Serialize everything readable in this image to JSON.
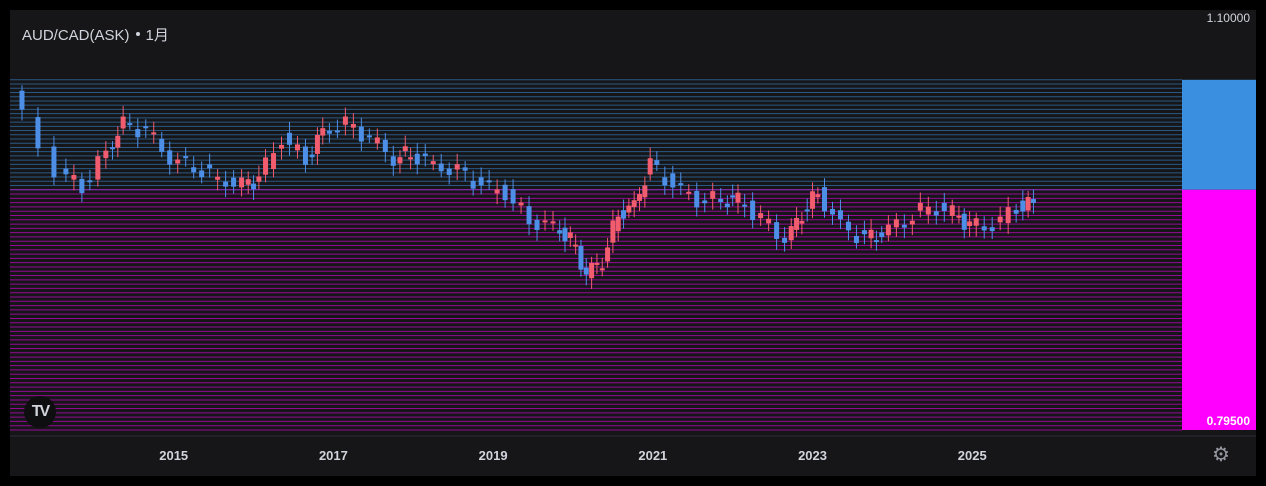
{
  "header": {
    "symbol": "AUD/CAD(ASK)",
    "interval": "1月"
  },
  "logo": {
    "label": "TV"
  },
  "settings_icon": "gear-icon",
  "colors": {
    "background": "#161618",
    "up": "#f15c6e",
    "down": "#4d8fe6",
    "zone_upper": "#3b8fe0",
    "zone_lower": "#ff00ff",
    "axis_text": "#d1d4dc"
  },
  "chart_data": {
    "type": "candlestick",
    "title": "AUD/CAD(ASK) · 1月",
    "x_ticks": [
      "2015",
      "2017",
      "2019",
      "2021",
      "2023",
      "2025"
    ],
    "y_axis": {
      "top_label": "1.10000",
      "bottom_label": "0.79500",
      "range": [
        0.795,
        1.1
      ]
    },
    "zones": [
      {
        "name": "upper",
        "color": "#3b8fe0",
        "from": 0.972,
        "to": 1.053
      },
      {
        "name": "lower",
        "color": "#ff00ff",
        "from": 0.795,
        "to": 0.972
      }
    ],
    "grid": false,
    "candles": [
      {
        "t": 2013.0,
        "c": 1.045
      },
      {
        "t": 2013.6,
        "c": 0.985
      },
      {
        "t": 2013.9,
        "c": 0.975
      },
      {
        "t": 2014.2,
        "c": 1.0
      },
      {
        "t": 2014.4,
        "c": 1.02
      },
      {
        "t": 2014.7,
        "c": 1.015
      },
      {
        "t": 2015.0,
        "c": 0.995
      },
      {
        "t": 2015.3,
        "c": 0.99
      },
      {
        "t": 2015.6,
        "c": 0.98
      },
      {
        "t": 2015.9,
        "c": 0.975
      },
      {
        "t": 2016.1,
        "c": 0.98
      },
      {
        "t": 2016.4,
        "c": 1.01
      },
      {
        "t": 2016.7,
        "c": 0.995
      },
      {
        "t": 2016.9,
        "c": 1.015
      },
      {
        "t": 2017.2,
        "c": 1.02
      },
      {
        "t": 2017.5,
        "c": 1.01
      },
      {
        "t": 2017.8,
        "c": 0.995
      },
      {
        "t": 2018.0,
        "c": 1.0
      },
      {
        "t": 2018.3,
        "c": 0.99
      },
      {
        "t": 2018.6,
        "c": 0.985
      },
      {
        "t": 2018.9,
        "c": 0.975
      },
      {
        "t": 2019.2,
        "c": 0.97
      },
      {
        "t": 2019.5,
        "c": 0.95
      },
      {
        "t": 2019.8,
        "c": 0.945
      },
      {
        "t": 2020.0,
        "c": 0.935
      },
      {
        "t": 2020.2,
        "c": 0.91
      },
      {
        "t": 2020.4,
        "c": 0.92
      },
      {
        "t": 2020.6,
        "c": 0.955
      },
      {
        "t": 2020.8,
        "c": 0.96
      },
      {
        "t": 2021.0,
        "c": 0.99
      },
      {
        "t": 2021.3,
        "c": 0.975
      },
      {
        "t": 2021.6,
        "c": 0.965
      },
      {
        "t": 2021.9,
        "c": 0.965
      },
      {
        "t": 2022.1,
        "c": 0.965
      },
      {
        "t": 2022.4,
        "c": 0.95
      },
      {
        "t": 2022.7,
        "c": 0.935
      },
      {
        "t": 2022.9,
        "c": 0.955
      },
      {
        "t": 2023.1,
        "c": 0.97
      },
      {
        "t": 2023.4,
        "c": 0.945
      },
      {
        "t": 2023.7,
        "c": 0.935
      },
      {
        "t": 2023.9,
        "c": 0.94
      },
      {
        "t": 2024.2,
        "c": 0.95
      },
      {
        "t": 2024.5,
        "c": 0.96
      },
      {
        "t": 2024.8,
        "c": 0.955
      },
      {
        "t": 2025.0,
        "c": 0.945
      },
      {
        "t": 2025.3,
        "c": 0.945
      },
      {
        "t": 2025.6,
        "c": 0.96
      },
      {
        "t": 2025.8,
        "c": 0.962
      }
    ]
  }
}
